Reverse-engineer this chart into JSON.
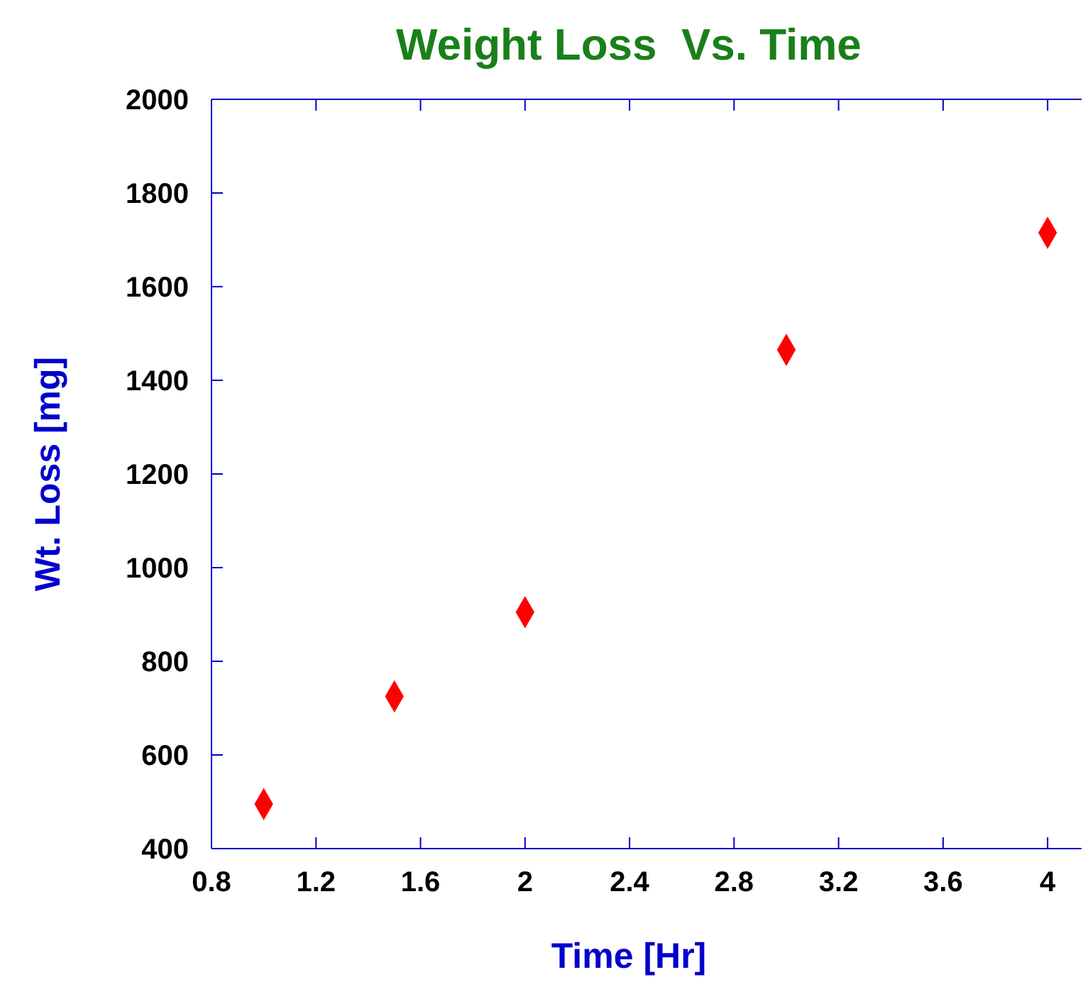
{
  "chart_data": {
    "type": "scatter",
    "title": "Weight Loss  Vs. Time",
    "xlabel": "Time [Hr]",
    "ylabel": "Wt. Loss [mg]",
    "x": [
      1,
      1.5,
      2,
      3,
      4
    ],
    "series": [
      {
        "color": "#ff0000",
        "values": [
          495,
          725,
          905,
          1465,
          1715
        ]
      }
    ],
    "marker": "diamond",
    "xlim": [
      0.8,
      4.13
    ],
    "ylim": [
      400,
      2000
    ],
    "xticks": [
      0.8,
      1.2,
      1.6,
      2,
      2.4,
      2.8,
      3.2,
      3.6,
      4
    ],
    "yticks": [
      400,
      600,
      800,
      1000,
      1200,
      1400,
      1600,
      1800,
      2000
    ],
    "grid": false
  }
}
